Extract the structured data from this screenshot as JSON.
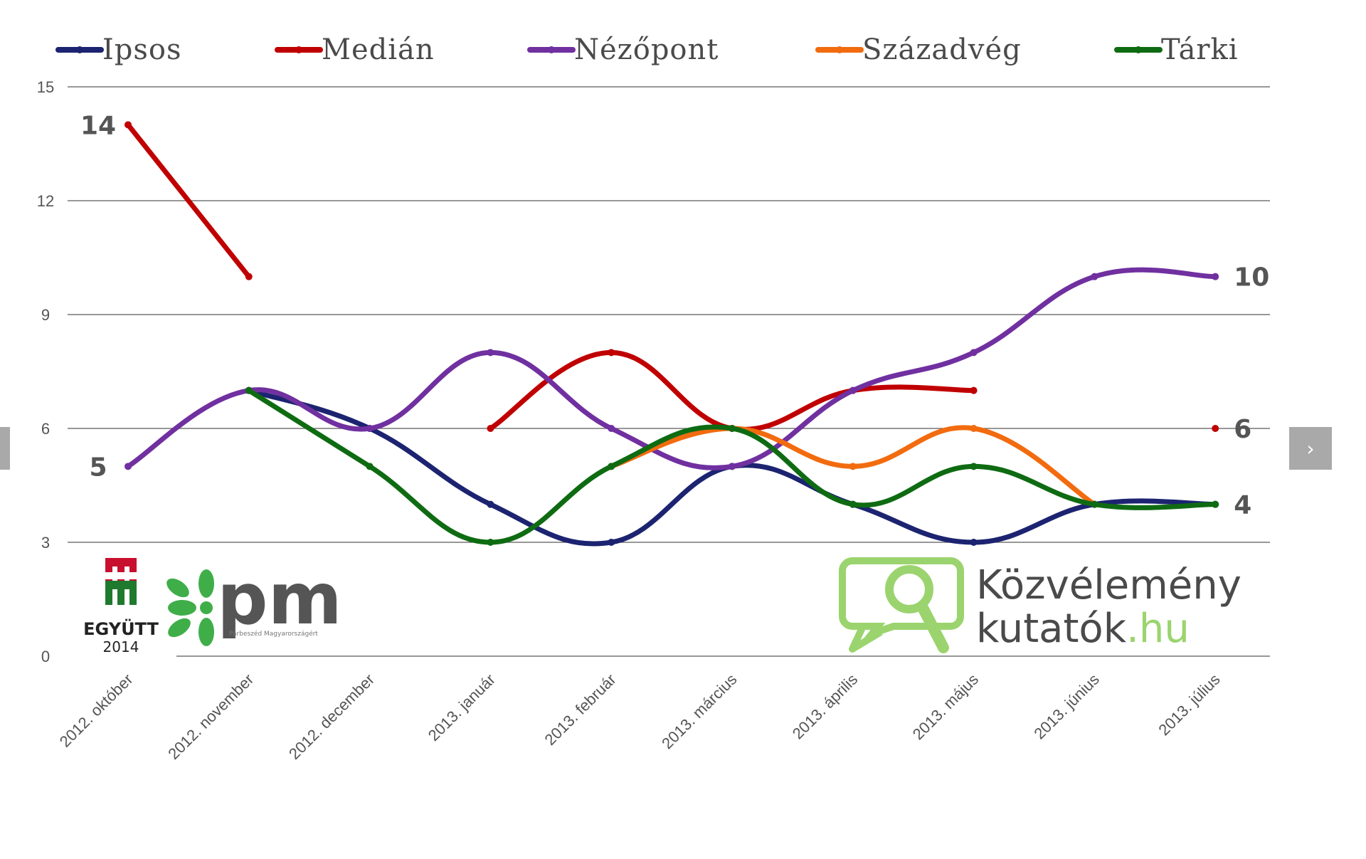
{
  "chart_data": {
    "type": "line",
    "categories": [
      "2012. október",
      "2012. november",
      "2012. december",
      "2013. január",
      "2013. február",
      "2013. március",
      "2013. április",
      "2013. május",
      "2013. június",
      "2013. július"
    ],
    "y_ticks": [
      "0",
      "3",
      "6",
      "9",
      "12",
      "15"
    ],
    "ylim": [
      0,
      15
    ],
    "grid": true,
    "legend_position": "top",
    "series": [
      {
        "name": "Ipsos",
        "color": "#1c2370",
        "values": [
          null,
          7,
          6,
          4,
          3,
          5,
          4,
          3,
          4,
          4
        ]
      },
      {
        "name": "Medián",
        "color": "#c00000",
        "values": [
          14,
          10,
          null,
          6,
          8,
          6,
          7,
          7,
          null,
          6
        ]
      },
      {
        "name": "Nézőpont",
        "color": "#7030a0",
        "values": [
          5,
          7,
          6,
          8,
          6,
          5,
          7,
          8,
          10,
          10
        ]
      },
      {
        "name": "Századvég",
        "color": "#f26b0f",
        "values": [
          null,
          null,
          null,
          null,
          5,
          6,
          5,
          6,
          4,
          null
        ]
      },
      {
        "name": "Tárki",
        "color": "#0e6b12",
        "values": [
          null,
          7,
          5,
          3,
          5,
          6,
          4,
          5,
          4,
          4
        ]
      }
    ],
    "annotations": [
      {
        "text": "14",
        "value": 14,
        "category": 0,
        "side": "left"
      },
      {
        "text": "5",
        "value": 5,
        "category": 0,
        "side": "left"
      },
      {
        "text": "10",
        "value": 10,
        "category": 9,
        "side": "right"
      },
      {
        "text": "6",
        "value": 6,
        "category": 9,
        "side": "right"
      },
      {
        "text": "4",
        "value": 4,
        "category": 9,
        "side": "right"
      }
    ]
  },
  "logos": {
    "egyutt_text": "EGYÜTT",
    "egyutt_year": "2014",
    "pm_text": "pm",
    "pm_sub": "Párbeszéd Magyarországért",
    "site_line1": "Közvélemény",
    "site_line2_main": "kutatók",
    "site_line2_suffix": ".hu"
  },
  "navigation": {
    "next_label": "›",
    "prev_label": ""
  },
  "colors": {
    "egyutt_red": "#c8102e",
    "egyutt_green": "#1f7a2e",
    "pm_green": "#3fae49",
    "site_green": "#9bd46e",
    "site_text": "#4a4a4a"
  }
}
